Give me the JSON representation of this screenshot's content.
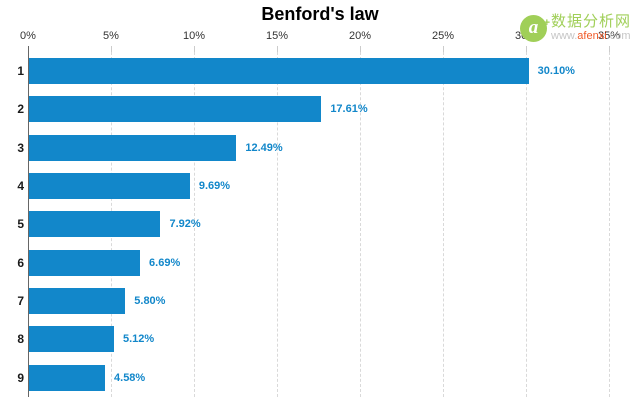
{
  "chart_data": {
    "type": "bar",
    "orientation": "horizontal",
    "title": "Benford's law",
    "categories": [
      "1",
      "2",
      "3",
      "4",
      "5",
      "6",
      "7",
      "8",
      "9"
    ],
    "values": [
      30.1,
      17.61,
      12.49,
      9.69,
      7.92,
      6.69,
      5.8,
      5.12,
      4.58
    ],
    "value_labels": [
      "30.10%",
      "17.61%",
      "12.49%",
      "9.69%",
      "7.92%",
      "6.69%",
      "5.80%",
      "5.12%",
      "4.58%"
    ],
    "xlabel": "",
    "ylabel": "",
    "x_axis": {
      "position": "top",
      "min": 0,
      "max": 35,
      "tick_labels": [
        "0%",
        "5%",
        "10%",
        "15%",
        "20%",
        "25%",
        "30%",
        "35%"
      ]
    },
    "grid": {
      "vertical": true,
      "style": "dashed"
    },
    "legend": "none",
    "bar_color": "#1287ca",
    "value_label_color": "#1287ca"
  },
  "watermark": {
    "logo_glyph": "a",
    "site_name": "数据分析网",
    "url_www": "www.",
    "url_domain": "afenxi",
    "url_tld": ".com"
  },
  "colors": {
    "bar": "#1287ca",
    "value_label": "#1287ca",
    "axis_text": "#333333",
    "grid": "#d9d9d9",
    "axis_line": "#666666",
    "watermark_green": "#a0cf58",
    "watermark_orange": "#f05a28",
    "watermark_gray": "#c6c6c6"
  }
}
